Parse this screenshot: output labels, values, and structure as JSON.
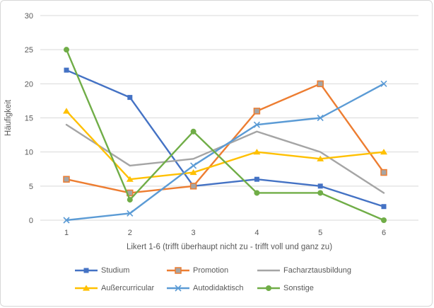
{
  "chart_data": {
    "type": "line",
    "x": [
      1,
      2,
      3,
      4,
      5,
      6
    ],
    "x_tick_labels": [
      "1",
      "2",
      "3",
      "4",
      "5",
      "6"
    ],
    "xlabel": "Likert 1-6 (trifft überhaupt nicht zu - trifft voll und ganz zu)",
    "ylabel": "Häufigkeit",
    "ylim": [
      0,
      30
    ],
    "yticks": [
      0,
      5,
      10,
      15,
      20,
      25,
      30
    ],
    "grid": "horizontal-only",
    "gridline_color": "#d9d9d9",
    "tick_label_color": "#595959",
    "legend_position": "bottom",
    "series": [
      {
        "name": "Studium",
        "color": "#4472C4",
        "marker": "square",
        "marker_fill": "#4472C4",
        "values": [
          22,
          18,
          5,
          6,
          5,
          2
        ]
      },
      {
        "name": "Promotion",
        "color": "#ED7D31",
        "marker": "square-gray",
        "marker_fill": "#A5A5A5",
        "values": [
          6,
          4,
          5,
          16,
          20,
          7
        ]
      },
      {
        "name": "Facharztausbildung",
        "color": "#A5A5A5",
        "marker": "none",
        "marker_fill": "#A5A5A5",
        "values": [
          14,
          8,
          9,
          13,
          10,
          4
        ]
      },
      {
        "name": "Außercurricular",
        "color": "#FFC000",
        "marker": "triangle",
        "marker_fill": "#FFC000",
        "values": [
          16,
          6,
          7,
          10,
          9,
          10
        ]
      },
      {
        "name": "Autodidaktisch",
        "color": "#5B9BD5",
        "marker": "x",
        "marker_fill": "#5B9BD5",
        "values": [
          0,
          1,
          8,
          14,
          15,
          20
        ]
      },
      {
        "name": "Sonstige",
        "color": "#70AD47",
        "marker": "circle",
        "marker_fill": "#70AD47",
        "values": [
          25,
          3,
          13,
          4,
          4,
          0
        ]
      }
    ]
  }
}
